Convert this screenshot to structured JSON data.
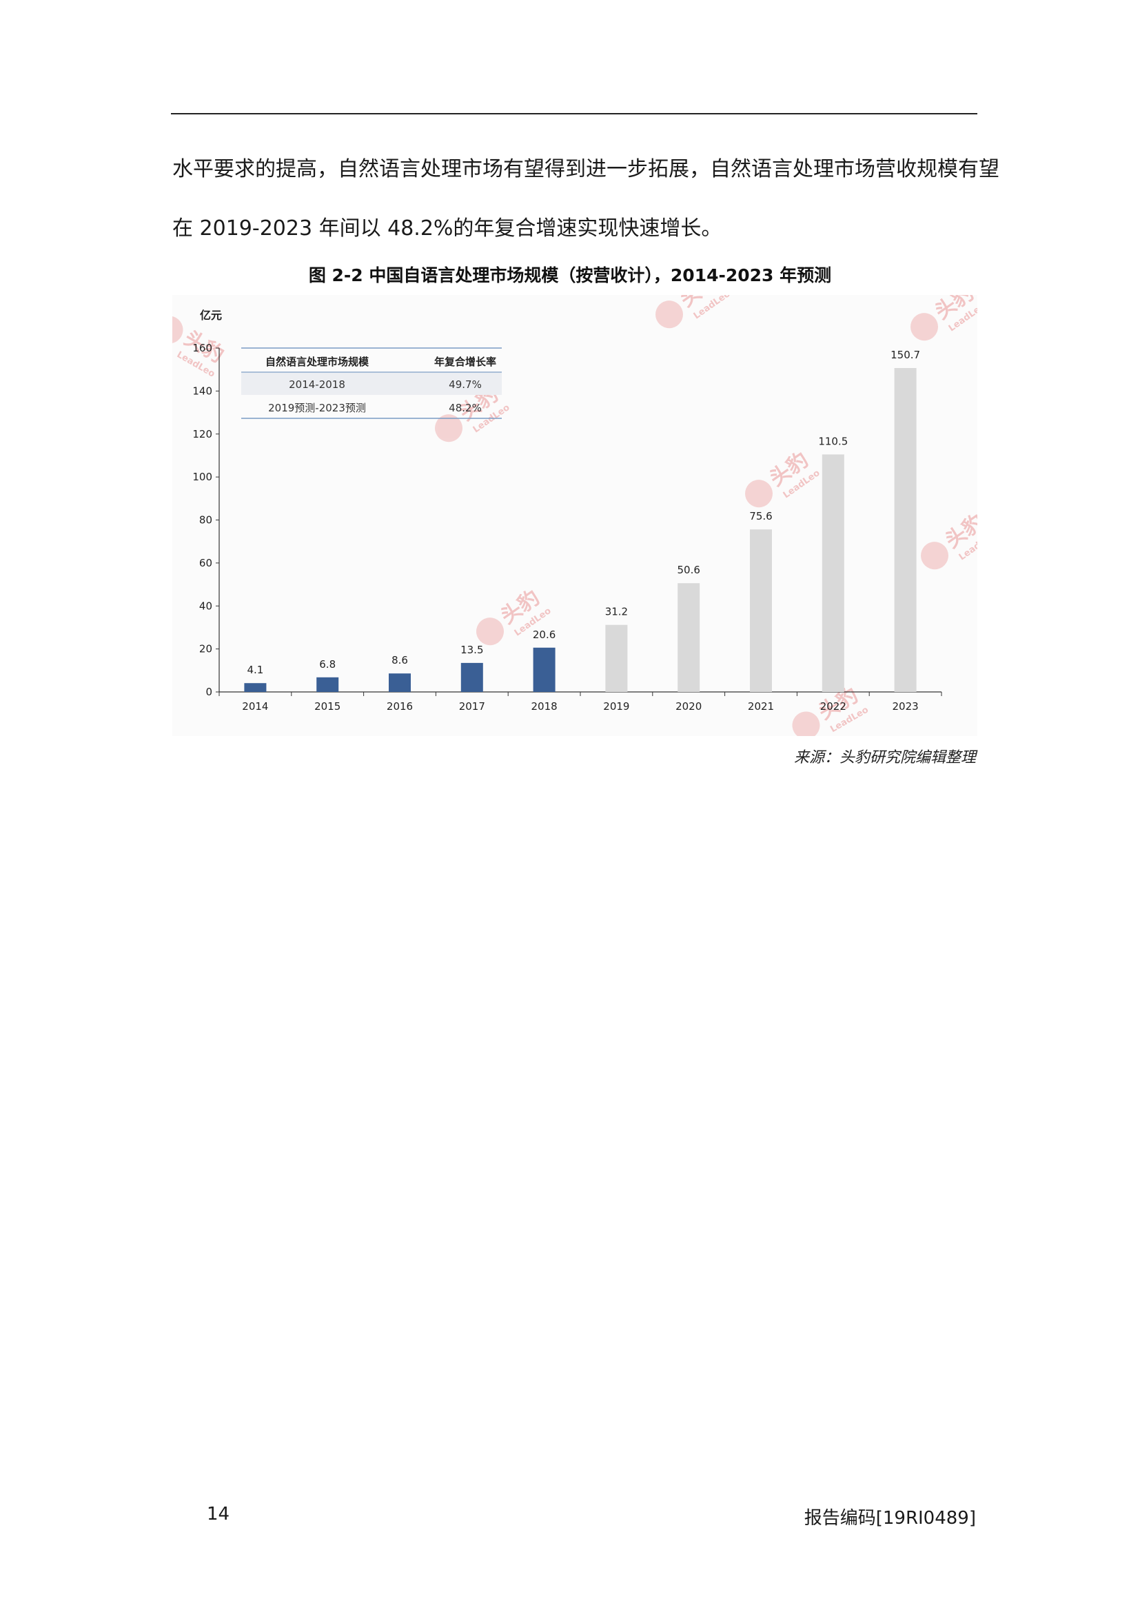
{
  "document": {
    "paragraph_line1": "水平要求的提高，自然语言处理市场有望得到进一步拓展，自然语言处理市场营收规模有望",
    "paragraph_line2": "在 2019-2023 年间以 48.2%的年复合增速实现快速增长。",
    "figure_caption": "图  2-2  中国自语言处理市场规模（按营收计），2014-2023 年预测",
    "source_note": "来源：头豹研究院编辑整理",
    "page_number": "14",
    "report_code": "报告编码[19RI0489]"
  },
  "inset_table": {
    "headers": [
      "自然语言处理市场规模",
      "年复合增长率"
    ],
    "rows": [
      [
        "2014-2018",
        "49.7%"
      ],
      [
        "2019预测-2023预测",
        "48.2%"
      ]
    ]
  },
  "watermark": {
    "text": "头豹",
    "subtext": "LeadLeo"
  },
  "chart_data": {
    "type": "bar",
    "ylabel": "亿元",
    "ylim": [
      0,
      160
    ],
    "yticks": [
      0,
      20,
      40,
      60,
      80,
      100,
      120,
      140,
      160
    ],
    "categories": [
      "2014",
      "2015",
      "2016",
      "2017",
      "2018",
      "2019",
      "2020",
      "2021",
      "2022",
      "2023"
    ],
    "values": [
      4.1,
      6.8,
      8.6,
      13.5,
      20.6,
      31.2,
      50.6,
      75.6,
      110.5,
      150.7
    ],
    "value_labels": [
      "4.1",
      "6.8",
      "8.6",
      "13.5",
      "20.6",
      "31.2",
      "50.6",
      "75.6",
      "110.5",
      "150.7"
    ],
    "actual_color": "#3a5f95",
    "forecast_color": "#d9d9d9",
    "forecast_from_index": 5
  }
}
